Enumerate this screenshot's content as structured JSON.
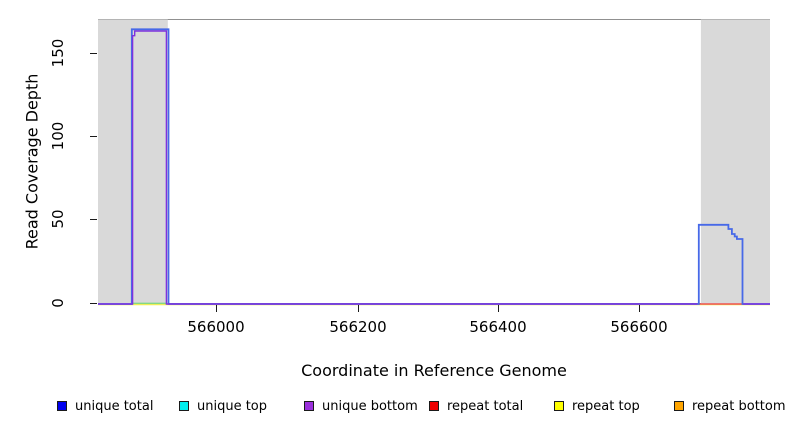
{
  "y_axis": {
    "title": "Read Coverage Depth",
    "ticks": [
      {
        "label": "0",
        "value": 0
      },
      {
        "label": "50",
        "value": 50
      },
      {
        "label": "100",
        "value": 100
      },
      {
        "label": "150",
        "value": 150
      }
    ]
  },
  "x_axis": {
    "title": "Coordinate in Reference Genome",
    "ticks": [
      {
        "label": "566000",
        "value": 566000
      },
      {
        "label": "566200",
        "value": 566200
      },
      {
        "label": "566400",
        "value": 566400
      },
      {
        "label": "566600",
        "value": 566600
      }
    ]
  },
  "legend": {
    "items": [
      {
        "label": "unique total",
        "color": "#0000EE"
      },
      {
        "label": "unique top",
        "color": "#00EEEE"
      },
      {
        "label": "unique bottom",
        "color": "#9B30DC"
      },
      {
        "label": "repeat total",
        "color": "#EE0000"
      },
      {
        "label": "repeat top",
        "color": "#FFFF00"
      },
      {
        "label": "repeat bottom",
        "color": "#FFA500"
      }
    ]
  },
  "chart_data": {
    "type": "line",
    "title": "",
    "xlabel": "Coordinate in Reference Genome",
    "ylabel": "Read Coverage Depth",
    "x_range": [
      565833,
      566786
    ],
    "y_range": [
      0,
      171
    ],
    "x_ticks": [
      566000,
      566200,
      566400,
      566600
    ],
    "y_ticks": [
      0,
      50,
      100,
      150
    ],
    "grid": false,
    "legend_position": "bottom",
    "shaded_regions": [
      {
        "name": "masked-region-left",
        "x0": 565833,
        "x1": 565932,
        "color": "#D9D9D9"
      },
      {
        "name": "masked-region-right",
        "x0": 566688,
        "x1": 566786,
        "color": "#D9D9D9"
      }
    ],
    "series": [
      {
        "name": "repeat top",
        "color": "#EFEF55",
        "width": 1.4,
        "segments": [
          [
            [
              565833,
              -0.35
            ],
            [
              566786,
              -0.35
            ]
          ]
        ]
      },
      {
        "name": "unique top over repeat top (green blend)",
        "color": "#84D884",
        "width": 1.4,
        "segments": [
          [
            [
              565882,
              0.4
            ],
            [
              565930,
              0.4
            ]
          ]
        ]
      },
      {
        "name": "repeat total",
        "color": "#EF5353",
        "width": 1.4,
        "segments": [
          [
            [
              566683,
              0
            ],
            [
              566748,
              0
            ]
          ]
        ]
      },
      {
        "name": "unique total",
        "color": "#4769E8",
        "width": 1.8,
        "segments": [
          [
            [
              565833,
              0
            ],
            [
              565881,
              0
            ],
            [
              565881,
              164.8
            ],
            [
              565933,
              164.8
            ],
            [
              565933,
              0
            ],
            [
              566685,
              0
            ],
            [
              566685,
              47.5
            ],
            [
              566727,
              47.5
            ],
            [
              566727,
              45
            ],
            [
              566732,
              45
            ],
            [
              566732,
              42
            ],
            [
              566736,
              42
            ],
            [
              566736,
              40.5
            ],
            [
              566739,
              40.5
            ],
            [
              566739,
              39
            ],
            [
              566747,
              39
            ],
            [
              566747,
              0
            ],
            [
              566786,
              0
            ]
          ]
        ]
      },
      {
        "name": "unique bottom",
        "color": "#7E32DE",
        "width": 1.4,
        "segments": [
          [
            [
              565833,
              0
            ],
            [
              565882,
              0
            ],
            [
              565882,
              161
            ],
            [
              565885,
              161
            ],
            [
              565885,
              163.8
            ],
            [
              565930,
              163.8
            ],
            [
              565930,
              0
            ],
            [
              566683,
              0
            ]
          ],
          [
            [
              566748,
              0
            ],
            [
              566786,
              0
            ]
          ]
        ]
      }
    ]
  }
}
